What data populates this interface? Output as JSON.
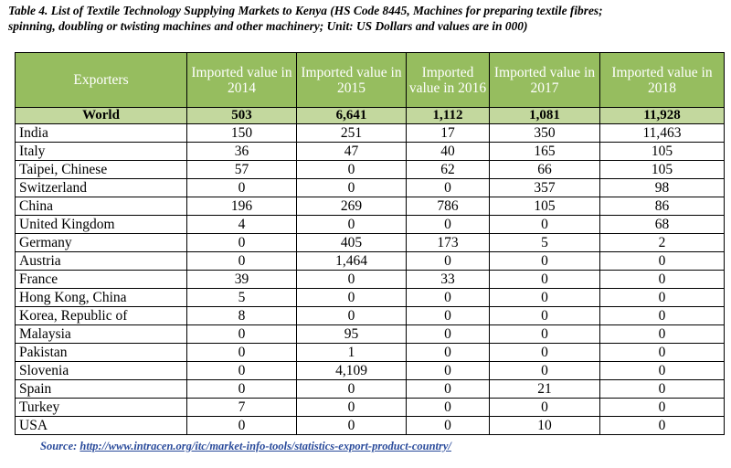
{
  "caption": {
    "line1": "Table 4. List of Textile Technology Supplying Markets to Kenya (HS Code 8445, Machines for preparing textile fibres;",
    "line2": "spinning, doubling or twisting machines and other machinery; Unit: US Dollars and values are in 000)"
  },
  "table": {
    "headers": [
      "Exporters",
      "Imported value in 2014",
      "Imported value in 2015",
      "Imported value in 2016",
      "Imported value in 2017",
      "Imported value in 2018"
    ],
    "world": [
      "World",
      "503",
      "6,641",
      "1,112",
      "1,081",
      "11,928"
    ],
    "rows": [
      [
        "India",
        "150",
        "251",
        "17",
        "350",
        "11,463"
      ],
      [
        "Italy",
        "36",
        "47",
        "40",
        "165",
        "105"
      ],
      [
        "Taipei, Chinese",
        "57",
        "0",
        "62",
        "66",
        "105"
      ],
      [
        "Switzerland",
        "0",
        "0",
        "0",
        "357",
        "98"
      ],
      [
        "China",
        "196",
        "269",
        "786",
        "105",
        "86"
      ],
      [
        "United Kingdom",
        "4",
        "0",
        "0",
        "0",
        "68"
      ],
      [
        "Germany",
        "0",
        "405",
        "173",
        "5",
        "2"
      ],
      [
        "Austria",
        "0",
        "1,464",
        "0",
        "0",
        "0"
      ],
      [
        "France",
        "39",
        "0",
        "33",
        "0",
        "0"
      ],
      [
        "Hong Kong, China",
        "5",
        "0",
        "0",
        "0",
        "0"
      ],
      [
        "Korea, Republic of",
        "8",
        "0",
        "0",
        "0",
        "0"
      ],
      [
        "Malaysia",
        "0",
        "95",
        "0",
        "0",
        "0"
      ],
      [
        "Pakistan",
        "0",
        "1",
        "0",
        "0",
        "0"
      ],
      [
        "Slovenia",
        "0",
        "4,109",
        "0",
        "0",
        "0"
      ],
      [
        "Spain",
        "0",
        "0",
        "0",
        "21",
        "0"
      ],
      [
        "Turkey",
        "7",
        "0",
        "0",
        "0",
        "0"
      ],
      [
        "USA",
        "0",
        "0",
        "0",
        "10",
        "0"
      ]
    ]
  },
  "source": {
    "label": "Source:",
    "url": "http://www.intracen.org/itc/market-info-tools/statistics-export-product-country/"
  },
  "colors": {
    "header_bg": "#96bd5f",
    "world_bg": "#c3d89e",
    "link": "#2a4b9b"
  }
}
